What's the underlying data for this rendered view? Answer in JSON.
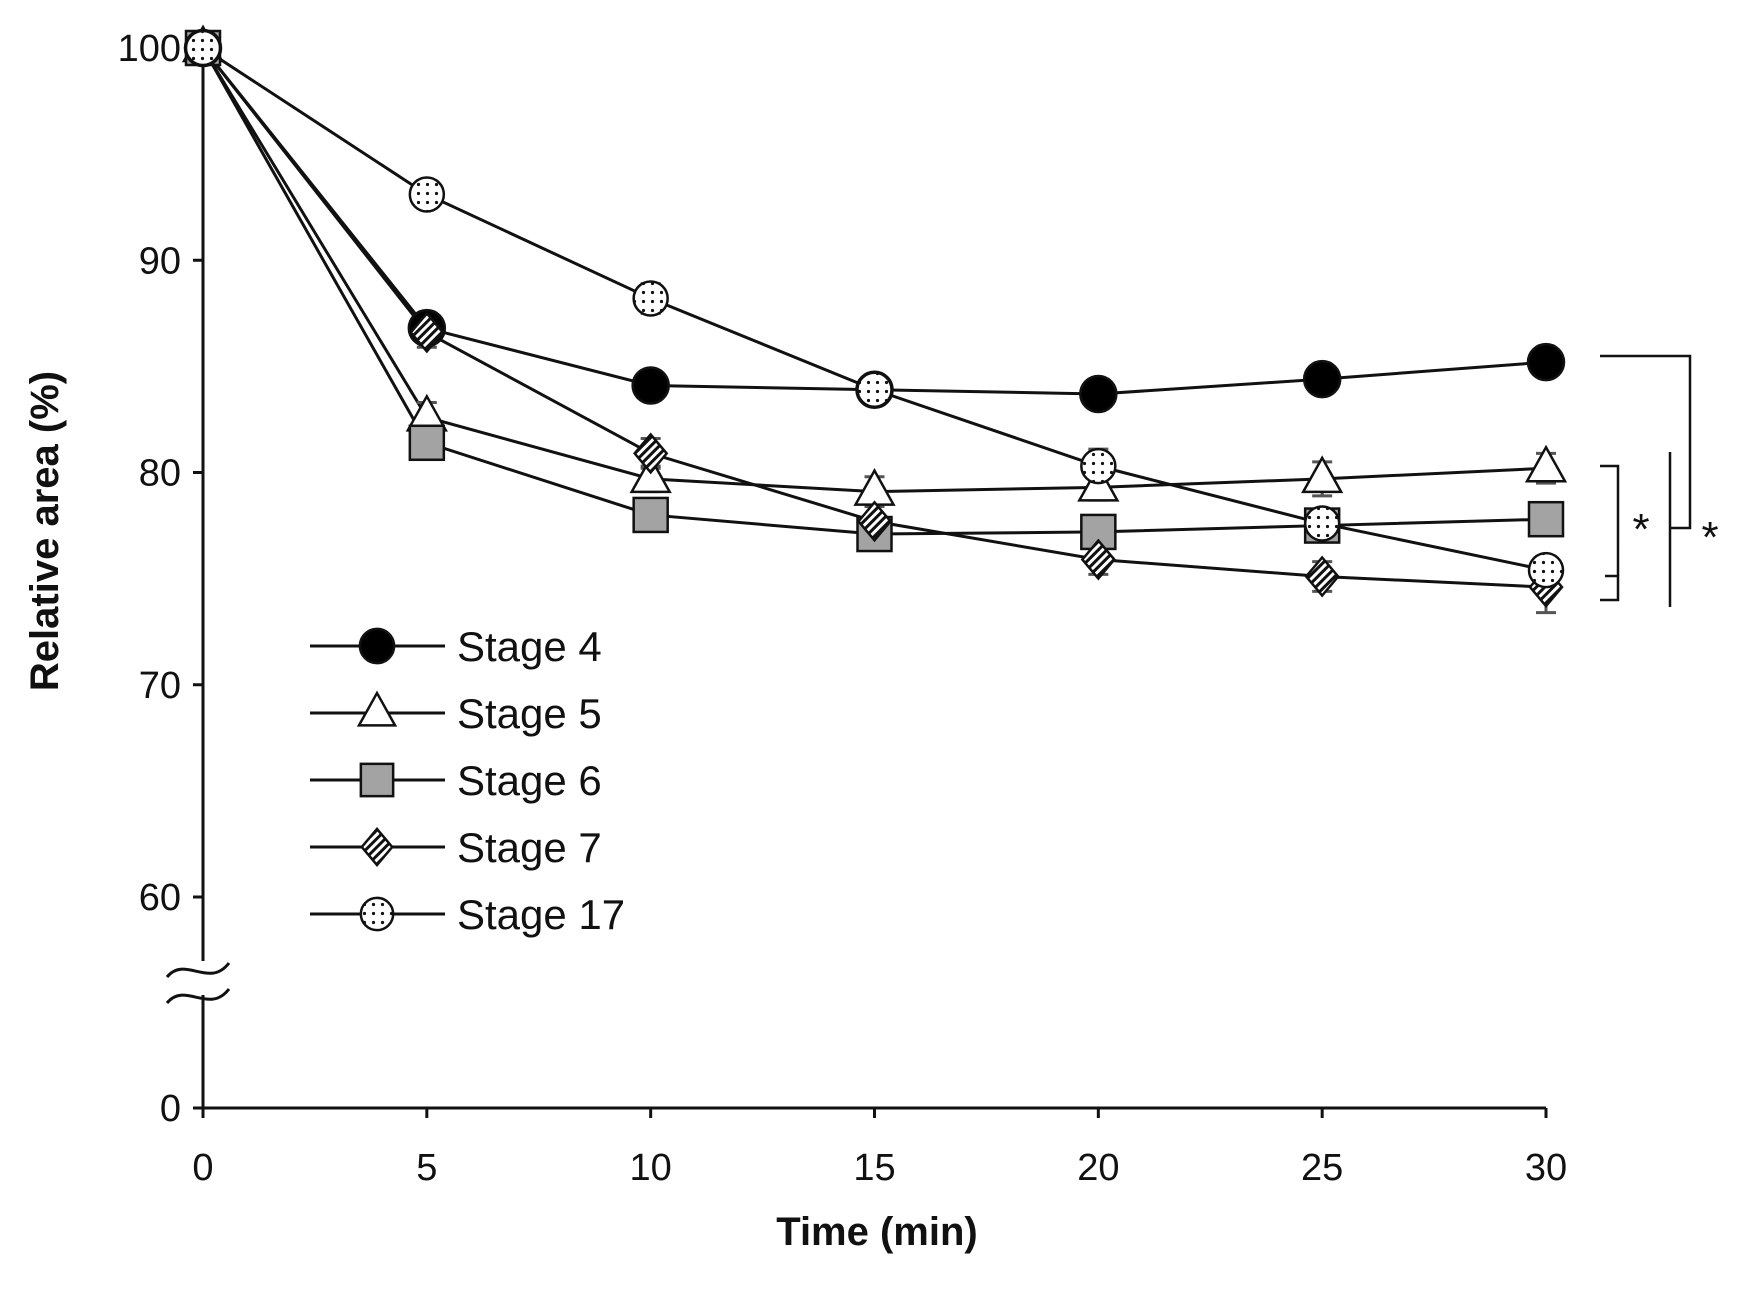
{
  "chart_data": {
    "type": "line",
    "title": "",
    "xlabel": "Time (min)",
    "ylabel": "Relative area (%)",
    "x": [
      0,
      5,
      10,
      15,
      20,
      25,
      30
    ],
    "x_ticks": [
      "0",
      "5",
      "10",
      "15",
      "20",
      "25",
      "30"
    ],
    "y_ticks": [
      "0",
      "60",
      "70",
      "80",
      "90",
      "100"
    ],
    "y_tick_values": [
      0,
      60,
      70,
      80,
      90,
      100
    ],
    "xlim": [
      0,
      30
    ],
    "ylim_upper": [
      60,
      100
    ],
    "y_axis_break": "between 0 and 60",
    "grid": false,
    "legend_position": "lower-left",
    "series": [
      {
        "name": "Stage 4",
        "marker": "filled-circle",
        "values": [
          100,
          86.8,
          84.1,
          83.9,
          83.7,
          84.4,
          85.2
        ],
        "errors": [
          0,
          0.5,
          0.4,
          0.4,
          0.5,
          0.5,
          0.5
        ]
      },
      {
        "name": "Stage 5",
        "marker": "open-triangle",
        "values": [
          100,
          82.6,
          79.7,
          79.1,
          79.3,
          79.7,
          80.2
        ],
        "errors": [
          0,
          0.7,
          0.6,
          0.7,
          0.6,
          0.8,
          0.7
        ]
      },
      {
        "name": "Stage 6",
        "marker": "gray-square",
        "values": [
          100,
          81.4,
          78.0,
          77.1,
          77.2,
          77.5,
          77.8
        ],
        "errors": [
          0,
          0.5,
          0.5,
          0.5,
          0.5,
          0.5,
          0.5
        ]
      },
      {
        "name": "Stage 7",
        "marker": "hatched-diamond",
        "values": [
          100,
          86.6,
          80.9,
          77.7,
          75.9,
          75.1,
          74.6
        ],
        "errors": [
          0,
          0.7,
          0.7,
          0.7,
          0.7,
          0.7,
          1.2
        ]
      },
      {
        "name": "Stage 17",
        "marker": "dotted-circle",
        "values": [
          100,
          93.1,
          88.2,
          83.9,
          80.3,
          77.6,
          75.4
        ],
        "errors": [
          0,
          0.4,
          0.7,
          0.5,
          0.8,
          0.6,
          0.6
        ]
      }
    ],
    "significance": [
      {
        "label": "*",
        "compares": "Stage 4 vs Stages 5–17"
      },
      {
        "label": "*",
        "compares": "Stages 5–6 vs Stages 7–17"
      }
    ]
  }
}
